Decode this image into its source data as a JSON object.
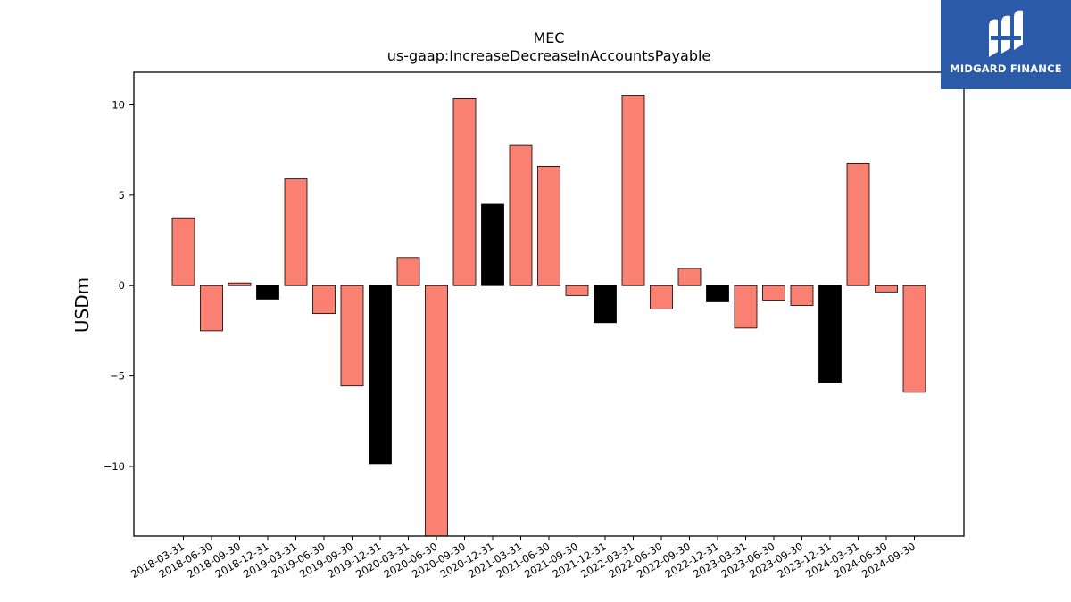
{
  "chart_data": {
    "type": "bar",
    "title": "MEC",
    "subtitle": "us-gaap:IncreaseDecreaseInAccountsPayable",
    "xlabel": "",
    "ylabel": "USDm",
    "ylim": [
      -13.85,
      11.8
    ],
    "yticks": [
      10,
      5,
      0,
      -5,
      -10
    ],
    "ytick_labels": [
      "10",
      "5",
      "0",
      "−5",
      "−10"
    ],
    "grid": false,
    "categories": [
      "2018-03-31",
      "2018-06-30",
      "2018-09-30",
      "2018-12-31",
      "2019-03-31",
      "2019-06-30",
      "2019-09-30",
      "2019-12-31",
      "2020-03-31",
      "2020-06-30",
      "2020-09-30",
      "2020-12-31",
      "2021-03-31",
      "2021-06-30",
      "2021-09-30",
      "2021-12-31",
      "2022-03-31",
      "2022-06-30",
      "2022-09-30",
      "2022-12-31",
      "2023-03-31",
      "2023-06-30",
      "2023-09-30",
      "2023-12-31",
      "2024-03-31",
      "2024-06-30",
      "2024-09-30"
    ],
    "values": [
      3.75,
      -2.5,
      0.15,
      -0.75,
      5.9,
      -1.55,
      -5.55,
      -9.85,
      1.55,
      -13.85,
      10.35,
      4.5,
      7.75,
      6.6,
      -0.55,
      -2.05,
      10.5,
      -1.3,
      0.95,
      -0.9,
      -2.35,
      -0.8,
      -1.1,
      -5.35,
      6.75,
      -0.35,
      -5.9
    ],
    "bar_colors": [
      "#fa8072",
      "#fa8072",
      "#fa8072",
      "#000000",
      "#fa8072",
      "#fa8072",
      "#fa8072",
      "#000000",
      "#fa8072",
      "#fa8072",
      "#fa8072",
      "#000000",
      "#fa8072",
      "#fa8072",
      "#fa8072",
      "#000000",
      "#fa8072",
      "#fa8072",
      "#fa8072",
      "#000000",
      "#fa8072",
      "#fa8072",
      "#fa8072",
      "#000000",
      "#fa8072",
      "#fa8072",
      "#fa8072"
    ]
  },
  "logo": {
    "text": "MIDGARD FINANCE",
    "background": "#2b5aa8"
  }
}
